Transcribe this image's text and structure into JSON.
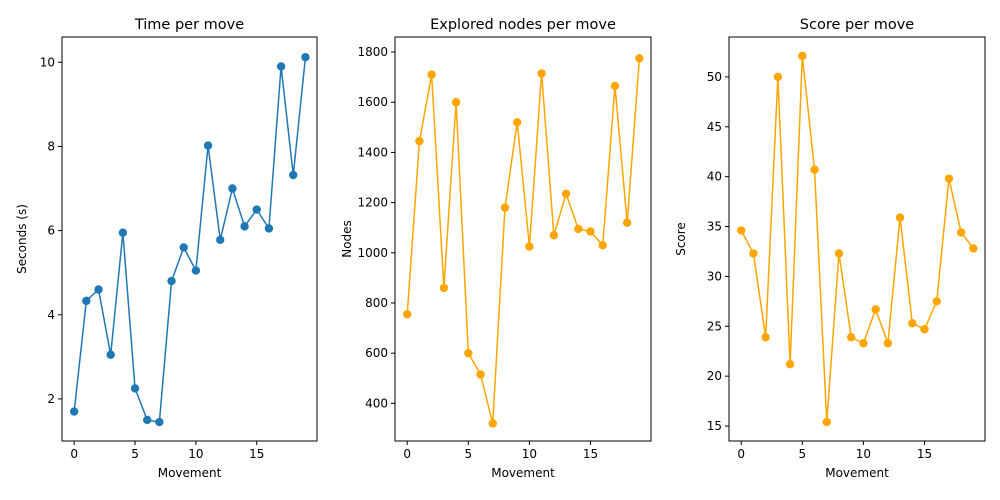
{
  "chart_data": [
    {
      "type": "line",
      "title": "Time per move",
      "xlabel": "Movement",
      "ylabel": "Seconds (s)",
      "color": "#1f77b4",
      "marker": "circle",
      "xlim": [
        -1,
        19.95
      ],
      "ylim": [
        1.0,
        10.6
      ],
      "xticks": [
        0,
        5,
        10,
        15
      ],
      "yticks": [
        2,
        4,
        6,
        8,
        10
      ],
      "grid": false,
      "x": [
        0,
        1,
        2,
        3,
        4,
        5,
        6,
        7,
        8,
        9,
        10,
        11,
        12,
        13,
        14,
        15,
        16,
        17,
        18,
        19
      ],
      "values": [
        1.7,
        4.33,
        4.6,
        3.05,
        5.95,
        2.25,
        1.5,
        1.45,
        4.8,
        5.6,
        5.05,
        8.02,
        5.78,
        7.0,
        6.1,
        6.5,
        6.05,
        9.9,
        7.32,
        10.12
      ]
    },
    {
      "type": "line",
      "title": "Explored nodes per move",
      "xlabel": "Movement",
      "ylabel": "Nodes",
      "color": "#ffa500",
      "marker": "circle",
      "xlim": [
        -1,
        19.95
      ],
      "ylim": [
        250,
        1860
      ],
      "xticks": [
        0,
        5,
        10,
        15
      ],
      "yticks": [
        400,
        600,
        800,
        1000,
        1200,
        1400,
        1600,
        1800
      ],
      "grid": false,
      "x": [
        0,
        1,
        2,
        3,
        4,
        5,
        6,
        7,
        8,
        9,
        10,
        11,
        12,
        13,
        14,
        15,
        16,
        17,
        18,
        19
      ],
      "values": [
        755,
        1445,
        1710,
        860,
        1600,
        600,
        515,
        320,
        1180,
        1520,
        1025,
        1715,
        1070,
        1235,
        1095,
        1085,
        1030,
        1665,
        1120,
        1775
      ]
    },
    {
      "type": "line",
      "title": "Score per move",
      "xlabel": "Movement",
      "ylabel": "Score",
      "color": "#ffa500",
      "marker": "circle",
      "xlim": [
        -1,
        19.95
      ],
      "ylim": [
        13.5,
        54.0
      ],
      "xticks": [
        0,
        5,
        10,
        15
      ],
      "yticks": [
        15,
        20,
        25,
        30,
        35,
        40,
        45,
        50
      ],
      "grid": false,
      "x": [
        0,
        1,
        2,
        3,
        4,
        5,
        6,
        7,
        8,
        9,
        10,
        11,
        12,
        13,
        14,
        15,
        16,
        17,
        18,
        19
      ],
      "values": [
        34.6,
        32.3,
        23.9,
        50.0,
        21.2,
        52.1,
        40.7,
        15.4,
        32.3,
        23.9,
        23.3,
        26.7,
        23.3,
        35.9,
        25.3,
        24.7,
        27.5,
        39.8,
        34.4,
        32.8
      ]
    }
  ]
}
